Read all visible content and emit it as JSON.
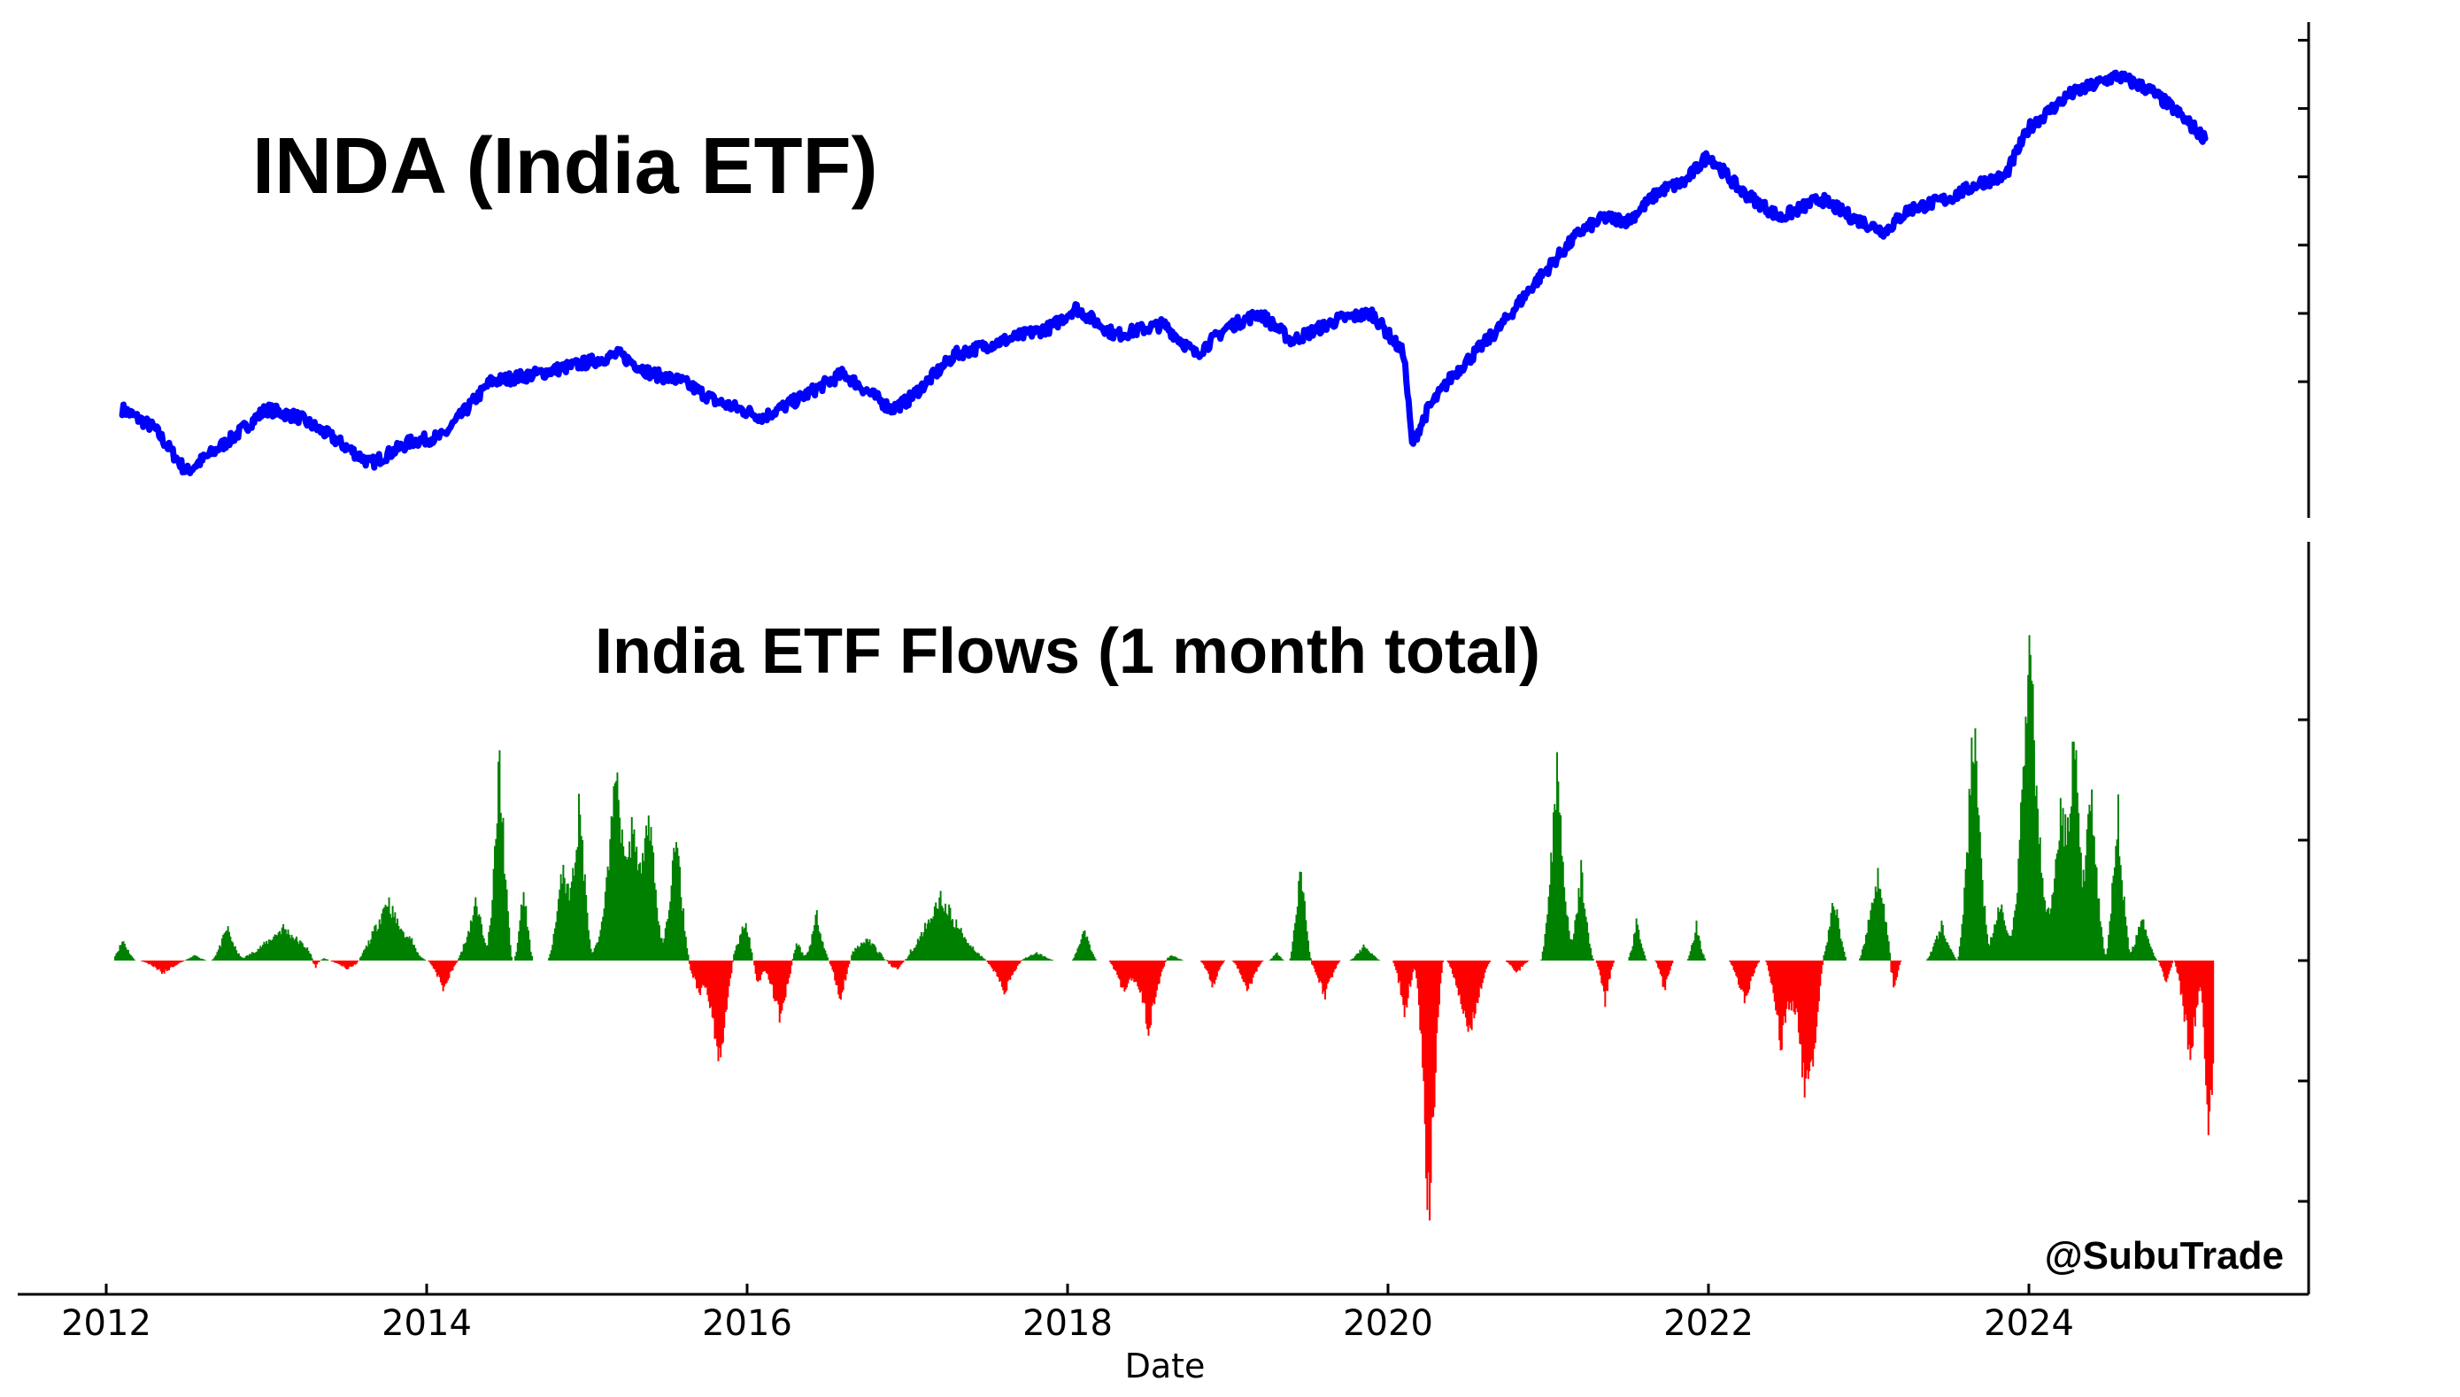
{
  "chart_data": [
    {
      "type": "line",
      "title": "INDA (India ETF)",
      "series": [
        {
          "color": "#0000ff",
          "x": [
            2012.1,
            2012.3,
            2012.5,
            2012.8,
            2013.0,
            2013.2,
            2013.4,
            2013.65,
            2013.9,
            2014.1,
            2014.4,
            2014.7,
            2015.0,
            2015.2,
            2015.4,
            2015.6,
            2015.8,
            2016.1,
            2016.3,
            2016.6,
            2016.9,
            2017.0,
            2017.3,
            2017.6,
            2017.9,
            2018.05,
            2018.3,
            2018.6,
            2018.8,
            2019.0,
            2019.2,
            2019.4,
            2019.7,
            2019.9,
            2020.1,
            2020.15,
            2020.25,
            2020.4,
            2020.7,
            2020.9,
            2021.2,
            2021.35,
            2021.5,
            2021.7,
            2021.85,
            2022.0,
            2022.2,
            2022.45,
            2022.7,
            2022.9,
            2023.1,
            2023.25,
            2023.5,
            2023.7,
            2023.85,
            2024.0,
            2024.25,
            2024.55,
            2024.75,
            2024.9,
            2025.1
          ],
          "y": [
            26.5,
            25.8,
            24.2,
            25.5,
            26.5,
            26.2,
            25.5,
            24.5,
            25.3,
            25.5,
            27.5,
            27.8,
            28.2,
            28.5,
            27.8,
            27.5,
            26.8,
            26.2,
            26.8,
            27.8,
            26.5,
            26.8,
            28.5,
            29.0,
            29.5,
            30.2,
            29.2,
            29.6,
            28.5,
            29.5,
            30.0,
            29.0,
            29.8,
            30.0,
            28.5,
            25.2,
            26.5,
            27.7,
            29.5,
            31.0,
            33.0,
            33.5,
            33.4,
            34.5,
            34.8,
            35.8,
            34.5,
            33.5,
            34.2,
            33.5,
            33.0,
            33.8,
            34.2,
            34.8,
            35.0,
            36.8,
            38.0,
            38.7,
            38.2,
            37.5,
            36.4
          ],
          "ylim": [
            23,
            40.5
          ]
        }
      ]
    },
    {
      "type": "area",
      "title": "India ETF Flows (1 month total)",
      "xlabel": "Date",
      "ylim": [
        -3,
        2.8
      ],
      "positive_color": "#008000",
      "negative_color": "#ff0000",
      "x_range": [
        2012,
        2025.5
      ],
      "x_ticks": [
        "2012",
        "2014",
        "2016",
        "2018",
        "2020",
        "2022",
        "2024"
      ],
      "events": [
        {
          "c": 2012.1,
          "w": 0.08,
          "h": 0.2
        },
        {
          "c": 2012.35,
          "w": 0.15,
          "h": -0.12
        },
        {
          "c": 2012.55,
          "w": 0.08,
          "h": 0.05
        },
        {
          "c": 2012.75,
          "w": 0.1,
          "h": 0.32
        },
        {
          "c": 2013.1,
          "w": 0.3,
          "h": 0.32
        },
        {
          "c": 2013.3,
          "w": 0.06,
          "h": -0.12
        },
        {
          "c": 2013.5,
          "w": 0.12,
          "h": -0.08
        },
        {
          "c": 2013.75,
          "w": 0.2,
          "h": 0.6
        },
        {
          "c": 2013.9,
          "w": 0.1,
          "h": 0.12
        },
        {
          "c": 2014.1,
          "w": 0.1,
          "h": -0.28
        },
        {
          "c": 2014.3,
          "w": 0.12,
          "h": 0.55
        },
        {
          "c": 2014.45,
          "w": 0.08,
          "h": 1.95
        },
        {
          "c": 2014.6,
          "w": 0.06,
          "h": 0.7
        },
        {
          "c": 2014.85,
          "w": 0.1,
          "h": 0.95
        },
        {
          "c": 2014.95,
          "w": 0.08,
          "h": 1.55
        },
        {
          "c": 2015.1,
          "w": 0.1,
          "h": 0.35
        },
        {
          "c": 2015.18,
          "w": 0.1,
          "h": 1.95
        },
        {
          "c": 2015.28,
          "w": 0.08,
          "h": 1.3
        },
        {
          "c": 2015.38,
          "w": 0.1,
          "h": 1.55
        },
        {
          "c": 2015.55,
          "w": 0.1,
          "h": 1.2
        },
        {
          "c": 2015.7,
          "w": 0.12,
          "h": -0.3
        },
        {
          "c": 2015.82,
          "w": 0.1,
          "h": -1.05
        },
        {
          "c": 2015.98,
          "w": 0.1,
          "h": 0.38
        },
        {
          "c": 2016.06,
          "w": 0.06,
          "h": -0.28
        },
        {
          "c": 2016.2,
          "w": 0.12,
          "h": -0.58
        },
        {
          "c": 2016.3,
          "w": 0.08,
          "h": 0.2
        },
        {
          "c": 2016.43,
          "w": 0.08,
          "h": 0.45
        },
        {
          "c": 2016.58,
          "w": 0.08,
          "h": -0.42
        },
        {
          "c": 2016.75,
          "w": 0.2,
          "h": 0.22
        },
        {
          "c": 2016.95,
          "w": 0.25,
          "h": -0.12
        },
        {
          "c": 2017.2,
          "w": 0.3,
          "h": 0.62
        },
        {
          "c": 2017.6,
          "w": 0.12,
          "h": -0.3
        },
        {
          "c": 2017.8,
          "w": 0.12,
          "h": 0.08
        },
        {
          "c": 2018.1,
          "w": 0.08,
          "h": 0.32
        },
        {
          "c": 2018.35,
          "w": 0.1,
          "h": -0.35
        },
        {
          "c": 2018.5,
          "w": 0.12,
          "h": -0.65
        },
        {
          "c": 2018.65,
          "w": 0.08,
          "h": 0.05
        },
        {
          "c": 2018.9,
          "w": 0.08,
          "h": -0.25
        },
        {
          "c": 2019.12,
          "w": 0.1,
          "h": -0.3
        },
        {
          "c": 2019.3,
          "w": 0.05,
          "h": 0.08
        },
        {
          "c": 2019.45,
          "w": 0.07,
          "h": 0.95
        },
        {
          "c": 2019.6,
          "w": 0.1,
          "h": -0.35
        },
        {
          "c": 2019.85,
          "w": 0.1,
          "h": 0.15
        },
        {
          "c": 2020.1,
          "w": 0.08,
          "h": -0.5
        },
        {
          "c": 2020.25,
          "w": 0.09,
          "h": -2.45
        },
        {
          "c": 2020.5,
          "w": 0.14,
          "h": -0.75
        },
        {
          "c": 2020.8,
          "w": 0.08,
          "h": -0.12
        },
        {
          "c": 2021.05,
          "w": 0.1,
          "h": 1.9
        },
        {
          "c": 2021.2,
          "w": 0.08,
          "h": 0.85
        },
        {
          "c": 2021.35,
          "w": 0.06,
          "h": -0.4
        },
        {
          "c": 2021.55,
          "w": 0.06,
          "h": 0.4
        },
        {
          "c": 2021.72,
          "w": 0.06,
          "h": -0.3
        },
        {
          "c": 2021.92,
          "w": 0.06,
          "h": 0.35
        },
        {
          "c": 2022.22,
          "w": 0.1,
          "h": -0.4
        },
        {
          "c": 2022.45,
          "w": 0.1,
          "h": -0.85
        },
        {
          "c": 2022.65,
          "w": 0.06,
          "h": -0.4
        },
        {
          "c": 2022.6,
          "w": 0.12,
          "h": -1.3
        },
        {
          "c": 2022.78,
          "w": 0.08,
          "h": 0.62
        },
        {
          "c": 2023.05,
          "w": 0.12,
          "h": 0.85
        },
        {
          "c": 2023.15,
          "w": 0.05,
          "h": -0.35
        },
        {
          "c": 2023.45,
          "w": 0.1,
          "h": 0.35
        },
        {
          "c": 2023.65,
          "w": 0.1,
          "h": 2.3
        },
        {
          "c": 2023.82,
          "w": 0.12,
          "h": 0.55
        },
        {
          "c": 2024.0,
          "w": 0.12,
          "h": 3.1
        },
        {
          "c": 2024.2,
          "w": 0.14,
          "h": 1.55
        },
        {
          "c": 2024.28,
          "w": 0.06,
          "h": 1.85
        },
        {
          "c": 2024.38,
          "w": 0.1,
          "h": 1.6
        },
        {
          "c": 2024.55,
          "w": 0.08,
          "h": 1.45
        },
        {
          "c": 2024.7,
          "w": 0.1,
          "h": 0.4
        },
        {
          "c": 2024.85,
          "w": 0.05,
          "h": -0.25
        },
        {
          "c": 2025.0,
          "w": 0.1,
          "h": -0.95
        },
        {
          "c": 2025.12,
          "w": 0.06,
          "h": -1.9
        }
      ]
    }
  ],
  "watermark": "@SubuTrade"
}
